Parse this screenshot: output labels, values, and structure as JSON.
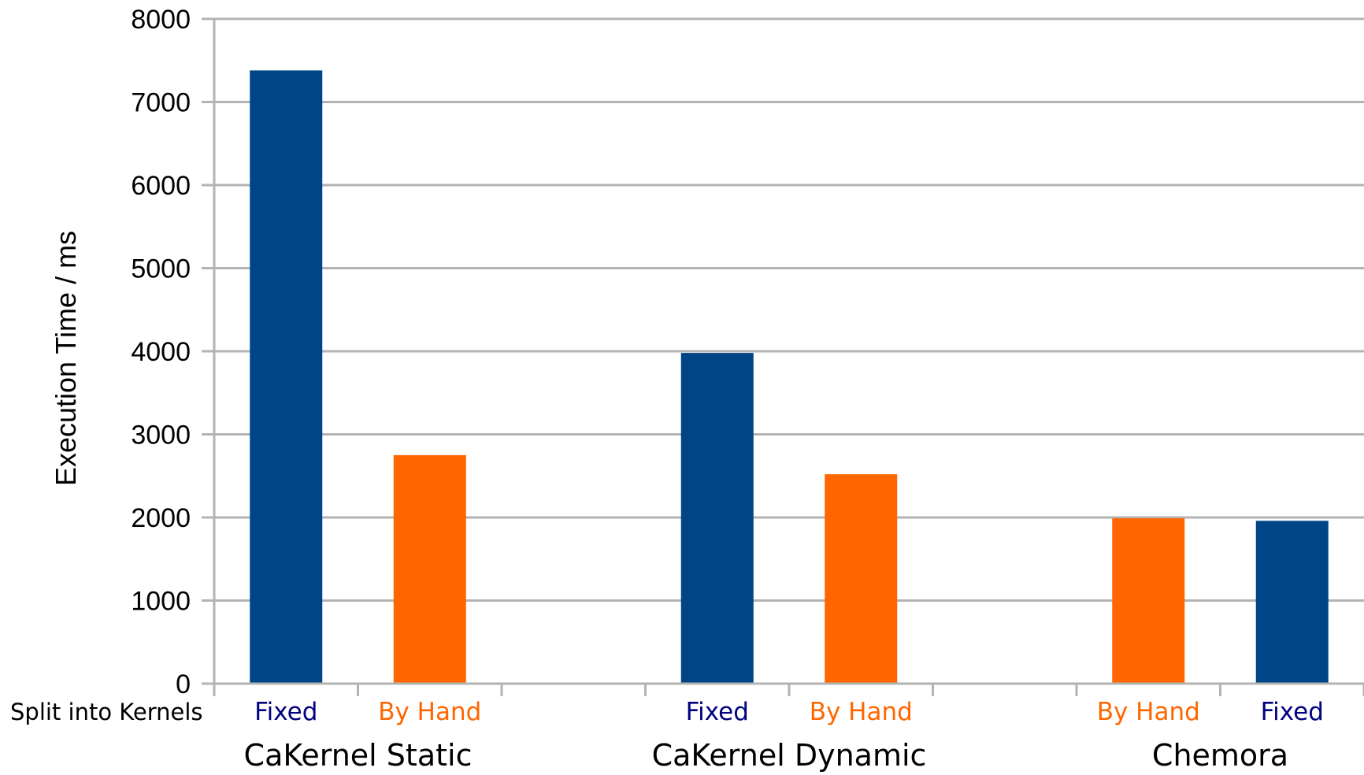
{
  "chart_data": {
    "type": "bar",
    "ylabel": "Execution Time / ms",
    "ylim": [
      0,
      8000
    ],
    "yticks": [
      0,
      1000,
      2000,
      3000,
      4000,
      5000,
      6000,
      7000,
      8000
    ],
    "grid": true,
    "row_label": "Split into Kernels",
    "colors": {
      "Fixed": "#004586",
      "By Hand": "#ff6600"
    },
    "label_colors": {
      "Fixed": "#000080",
      "By Hand": "#ff6600"
    },
    "groups": [
      {
        "label": "CaKernel Static",
        "bars": [
          {
            "category": "Fixed",
            "value": 7380
          },
          {
            "category": "By Hand",
            "value": 2750
          }
        ]
      },
      {
        "label": "CaKernel Dynamic",
        "bars": [
          {
            "category": "Fixed",
            "value": 3980
          },
          {
            "category": "By Hand",
            "value": 2520
          }
        ]
      },
      {
        "label": "Chemora",
        "bars": [
          {
            "category": "By Hand",
            "value": 1990
          },
          {
            "category": "Fixed",
            "value": 1960
          }
        ]
      }
    ]
  }
}
